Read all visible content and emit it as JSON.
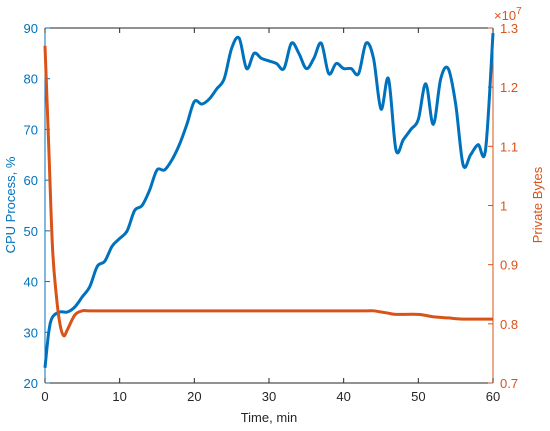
{
  "chart_data": {
    "type": "line",
    "xlabel": "Time, min",
    "ylabel": "CPU Process, %",
    "y2label": "Private Bytes",
    "y2_multiplier_base": "×10",
    "y2_multiplier_exponent": "7",
    "xlim": [
      0,
      60
    ],
    "xticks": [
      0,
      10,
      20,
      30,
      40,
      50,
      60
    ],
    "ylim": [
      20,
      90
    ],
    "yticks": [
      20,
      30,
      40,
      50,
      60,
      70,
      80,
      90
    ],
    "y2lim": [
      0.7,
      1.3
    ],
    "y2ticks": [
      0.7,
      0.8,
      0.9,
      1,
      1.1,
      1.2,
      1.3
    ],
    "left_axis_color": "#0072bd",
    "right_axis_color": "#d95319",
    "x_axis_color": "#262626",
    "series": [
      {
        "color": "#0072bd",
        "axis": "y",
        "x": [
          0,
          0.5,
          1,
          2,
          3,
          4,
          5,
          6,
          7,
          8,
          9,
          10,
          11,
          12,
          13,
          14,
          15,
          16,
          17,
          18,
          19,
          20,
          21,
          22,
          23,
          24,
          25,
          26,
          27,
          28,
          29,
          30,
          31,
          32,
          33,
          34,
          35,
          36,
          37,
          38,
          39,
          40,
          41,
          42,
          43,
          44,
          45,
          46,
          47,
          48,
          49,
          50,
          51,
          52,
          53,
          54,
          55,
          56,
          57,
          58,
          59,
          60
        ],
        "values": [
          23,
          30,
          33,
          34,
          34,
          35,
          37,
          39,
          43,
          44,
          47,
          48.5,
          50,
          54,
          55,
          58,
          62,
          62,
          64,
          67,
          71,
          75.5,
          75,
          76,
          78,
          80,
          86,
          88,
          82,
          85,
          84,
          83.5,
          83,
          82,
          87,
          85,
          82,
          84,
          87,
          81,
          83,
          82,
          82,
          81,
          87,
          84,
          74,
          80,
          66,
          68,
          70,
          72,
          79,
          71,
          80,
          82,
          75,
          63,
          65,
          67,
          66,
          89
        ]
      },
      {
        "color": "#d95319",
        "axis": "y2",
        "x": [
          0,
          0.5,
          1,
          1.5,
          2,
          2.5,
          3,
          4,
          5,
          6,
          10,
          20,
          30,
          40,
          43,
          44,
          45,
          46,
          47,
          50,
          52,
          54,
          56,
          60
        ],
        "values": [
          1.27,
          1.1,
          0.93,
          0.85,
          0.8,
          0.78,
          0.79,
          0.815,
          0.822,
          0.822,
          0.822,
          0.822,
          0.822,
          0.822,
          0.822,
          0.822,
          0.82,
          0.818,
          0.816,
          0.816,
          0.812,
          0.81,
          0.808,
          0.808
        ]
      }
    ]
  }
}
